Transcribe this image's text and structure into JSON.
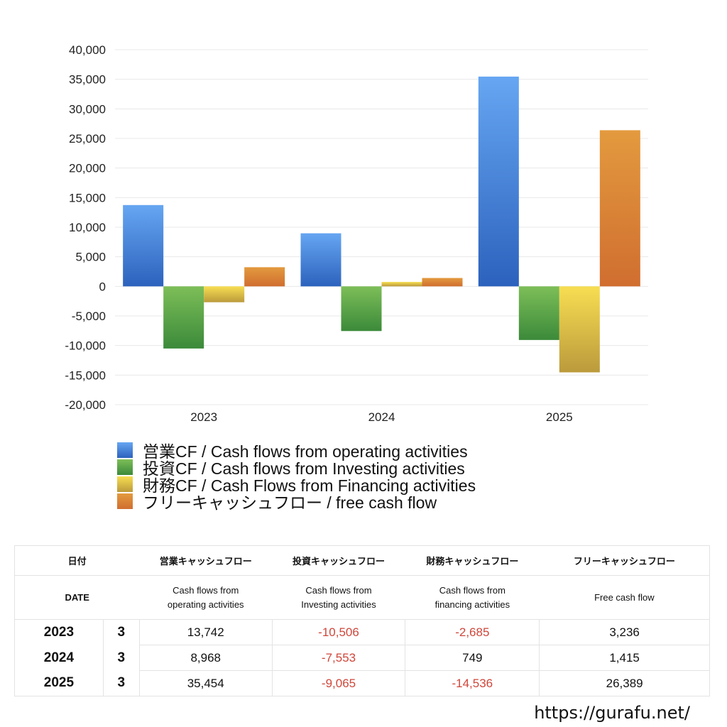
{
  "chart_data": {
    "type": "bar",
    "title": "",
    "xlabel": "",
    "ylabel": "",
    "categories": [
      "2023",
      "2024",
      "2025"
    ],
    "ylim": [
      -20000,
      40000
    ],
    "yticks": [
      40000,
      35000,
      30000,
      25000,
      20000,
      15000,
      10000,
      5000,
      0,
      -5000,
      -10000,
      -15000,
      -20000
    ],
    "ytick_labels": [
      "40,000",
      "35,000",
      "30,000",
      "25,000",
      "20,000",
      "15,000",
      "10,000",
      "5,000",
      "0",
      "-5,000",
      "-10,000",
      "-15,000",
      "-20,000"
    ],
    "grid": true,
    "legend_position": "bottom",
    "series": [
      {
        "name": "営業CF / Cash flows from operating activities",
        "values": [
          13742,
          8968,
          35454
        ],
        "color_top": "#66a6f2",
        "color_bottom": "#2c62bd"
      },
      {
        "name": "投資CF / Cash flows from Investing activities",
        "values": [
          -10506,
          -7553,
          -9065
        ],
        "color_top": "#7dbe58",
        "color_bottom": "#3b8a3a"
      },
      {
        "name": "財務CF / Cash Flows from Financing activities",
        "values": [
          -2685,
          749,
          -14536
        ],
        "color_top": "#f7de52",
        "color_bottom": "#bb9a3c"
      },
      {
        "name": "フリーキャッシュフロー / free cash flow",
        "values": [
          3236,
          1415,
          26389
        ],
        "color_top": "#e39a3e",
        "color_bottom": "#d06e30"
      }
    ]
  },
  "legend": {
    "items": [
      {
        "label": "営業CF / Cash flows from operating activities",
        "color": "#4a86e0"
      },
      {
        "label": "投資CF / Cash flows from Investing activities",
        "color": "#55a045"
      },
      {
        "label": "財務CF / Cash Flows from Financing activities",
        "color": "#dcc24a"
      },
      {
        "label": "フリーキャッシュフロー / free cash flow",
        "color": "#dc8438"
      }
    ]
  },
  "table": {
    "header_jp": {
      "date": "日付",
      "operating": "営業キャッシュフロー",
      "investing": "投資キャッシュフロー",
      "financing": "財務キャッシュフロー",
      "free": "フリーキャッシュフロー"
    },
    "header_en": {
      "date": "DATE",
      "operating_1": "Cash flows from",
      "operating_2": "operating activities",
      "investing_1": "Cash flows from",
      "investing_2": "Investing activities",
      "financing_1": "Cash flows from",
      "financing_2": "financing activities",
      "free": "Free cash flow"
    },
    "rows": [
      {
        "year": "2023",
        "month": "3",
        "operating": "13,742",
        "investing": "-10,506",
        "financing": "-2,685",
        "free": "3,236"
      },
      {
        "year": "2024",
        "month": "3",
        "operating": "8,968",
        "investing": "-7,553",
        "financing": "749",
        "free": "1,415"
      },
      {
        "year": "2025",
        "month": "3",
        "operating": "35,454",
        "investing": "-9,065",
        "financing": "-14,536",
        "free": "26,389"
      }
    ]
  },
  "footer": {
    "url": "https://gurafu.net/"
  },
  "colors": {
    "negative": "#d0463a",
    "grid": "#e8e8e8"
  }
}
